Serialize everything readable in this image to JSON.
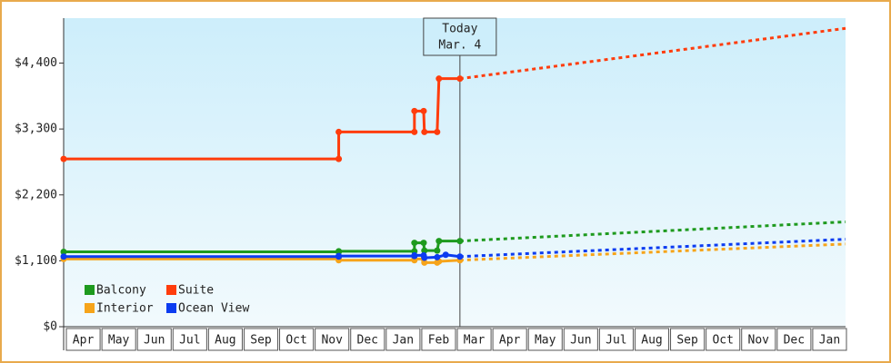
{
  "chart_data": {
    "type": "line",
    "categories": [
      "Apr",
      "May",
      "Jun",
      "Jul",
      "Aug",
      "Sep",
      "Oct",
      "Nov",
      "Dec",
      "Jan",
      "Feb",
      "Mar",
      "Apr",
      "May",
      "Jun",
      "Jul",
      "Aug",
      "Sep",
      "Oct",
      "Nov",
      "Dec",
      "Jan"
    ],
    "xlim": [
      0,
      22
    ],
    "ylim": [
      0,
      5150
    ],
    "yticks": [
      {
        "value": 0,
        "label": "$0"
      },
      {
        "value": 1100,
        "label": "$1,100"
      },
      {
        "value": 2200,
        "label": "$2,200"
      },
      {
        "value": 3300,
        "label": "$3,300"
      },
      {
        "value": 4400,
        "label": "$4,400"
      }
    ],
    "annotation": {
      "x": 11.15,
      "lines": [
        "Today",
        "Mar. 4"
      ]
    },
    "legend": "bottom-left",
    "series": [
      {
        "name": "Balcony",
        "color": "#1e9a1e",
        "x": [
          0,
          7.74,
          7.74,
          9.87,
          9.87,
          10.13,
          10.15,
          10.51,
          10.56,
          11.15
        ],
        "values": [
          1250,
          1250,
          1260,
          1260,
          1400,
          1400,
          1270,
          1270,
          1430,
          1430
        ],
        "projection": {
          "x": [
            11.15,
            22
          ],
          "values": [
            1430,
            1750
          ]
        }
      },
      {
        "name": "Suite",
        "color": "#ff3c0c",
        "x": [
          0,
          7.74,
          7.74,
          9.87,
          9.87,
          10.13,
          10.15,
          10.51,
          10.56,
          11.15
        ],
        "values": [
          2800,
          2800,
          3250,
          3250,
          3600,
          3600,
          3250,
          3250,
          4140,
          4140
        ],
        "projection": {
          "x": [
            11.15,
            22
          ],
          "values": [
            4140,
            4980
          ]
        }
      },
      {
        "name": "Interior",
        "color": "#f6a41a",
        "x": [
          0,
          7.74,
          7.74,
          9.87,
          9.87,
          10.13,
          10.15,
          10.51,
          10.56,
          11.15
        ],
        "values": [
          1130,
          1130,
          1110,
          1110,
          1130,
          1130,
          1070,
          1070,
          1090,
          1110
        ],
        "projection": {
          "x": [
            11.15,
            22
          ],
          "values": [
            1110,
            1380
          ]
        }
      },
      {
        "name": "Ocean View",
        "color": "#0c3cf0",
        "x": [
          0,
          7.74,
          7.74,
          9.87,
          9.87,
          10.13,
          10.15,
          10.51,
          10.75,
          11.15
        ],
        "values": [
          1170,
          1170,
          1180,
          1180,
          1190,
          1190,
          1150,
          1160,
          1200,
          1170
        ],
        "projection": {
          "x": [
            11.15,
            22
          ],
          "values": [
            1170,
            1460
          ]
        }
      }
    ]
  }
}
